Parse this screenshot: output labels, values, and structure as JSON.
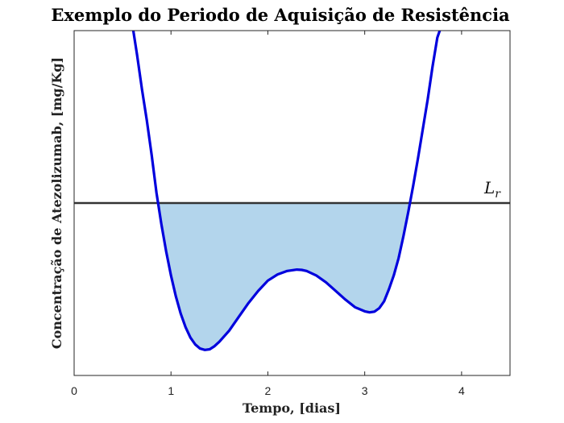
{
  "chart_data": {
    "type": "line",
    "title": "Exemplo do Periodo de Aquisição de Resistência",
    "xlabel": "Tempo, [dias]",
    "ylabel": "Concentração de Atezolizumab, [mg/Kg]",
    "xlim": [
      0,
      4.5
    ],
    "ylim": [
      0,
      10
    ],
    "xticks": [
      0,
      1,
      2,
      3,
      4
    ],
    "yticks_shown": false,
    "grid": false,
    "series": [
      {
        "color": "#0000dd",
        "x": [
          0.6,
          0.65,
          0.7,
          0.75,
          0.8,
          0.85,
          0.9,
          0.95,
          1.0,
          1.05,
          1.1,
          1.15,
          1.2,
          1.25,
          1.3,
          1.35,
          1.4,
          1.45,
          1.5,
          1.6,
          1.7,
          1.8,
          1.9,
          2.0,
          2.1,
          2.2,
          2.3,
          2.35,
          2.4,
          2.5,
          2.6,
          2.7,
          2.8,
          2.9,
          3.0,
          3.05,
          3.1,
          3.15,
          3.2,
          3.25,
          3.3,
          3.35,
          3.4,
          3.45,
          3.5,
          3.55,
          3.6,
          3.65,
          3.7,
          3.75,
          3.8,
          3.85,
          3.9,
          3.95,
          4.0
        ],
        "y": [
          10.2,
          9.3,
          8.3,
          7.4,
          6.4,
          5.3,
          4.4,
          3.6,
          2.9,
          2.3,
          1.8,
          1.4,
          1.1,
          0.9,
          0.78,
          0.74,
          0.76,
          0.85,
          0.98,
          1.3,
          1.7,
          2.1,
          2.45,
          2.75,
          2.93,
          3.03,
          3.07,
          3.06,
          3.03,
          2.9,
          2.7,
          2.45,
          2.2,
          1.98,
          1.86,
          1.83,
          1.85,
          1.95,
          2.15,
          2.5,
          2.9,
          3.4,
          4.05,
          4.75,
          5.5,
          6.3,
          7.15,
          8.0,
          8.95,
          9.8,
          10.2,
          10.2,
          10.2,
          10.2,
          10.2
        ]
      }
    ],
    "reference_line": {
      "y": 5.0,
      "label": "L",
      "label_sub": "r",
      "color": "#333333"
    },
    "fill_region": {
      "below": "reference_line",
      "color": "#b3d5ec"
    }
  }
}
